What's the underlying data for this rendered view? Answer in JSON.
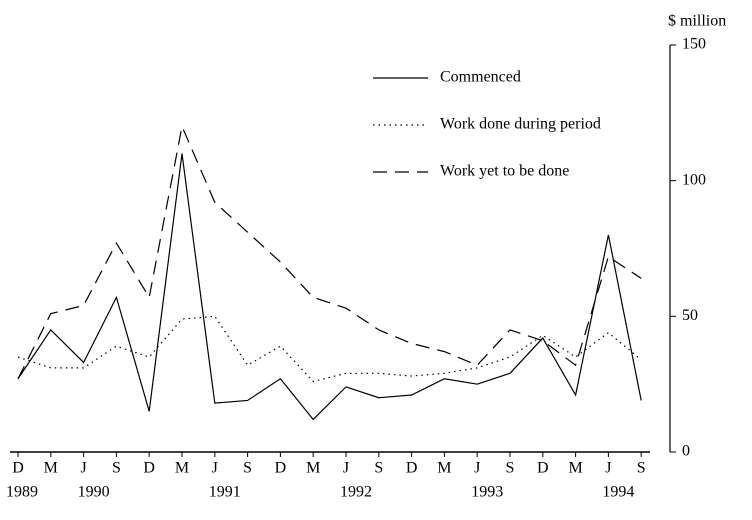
{
  "chart_data": {
    "type": "line",
    "y_axis_label": "$ million",
    "categories": [
      "D",
      "M",
      "J",
      "S",
      "D",
      "M",
      "J",
      "S",
      "D",
      "M",
      "J",
      "S",
      "D",
      "M",
      "J",
      "S",
      "D",
      "M",
      "J",
      "S"
    ],
    "years": [
      "1989",
      null,
      "1990",
      null,
      null,
      null,
      "1991",
      null,
      null,
      null,
      "1992",
      null,
      null,
      null,
      "1993",
      null,
      null,
      null,
      "1994",
      null
    ],
    "series": [
      {
        "name": "Commenced",
        "color": "#000000",
        "dash": "solid",
        "values": [
          27,
          45,
          33,
          57,
          15,
          110,
          18,
          19,
          27,
          12,
          24,
          20,
          21,
          27,
          25,
          29,
          42,
          21,
          80,
          19
        ]
      },
      {
        "name": "Work done during period",
        "color": "#000000",
        "dash": "dotted",
        "values": [
          35,
          31,
          31,
          39,
          35,
          49,
          50,
          32,
          39,
          26,
          29,
          29,
          28,
          29,
          31,
          35,
          43,
          35,
          44,
          34
        ]
      },
      {
        "name": "Work yet to be done",
        "color": "#000000",
        "dash": "dashed",
        "values": [
          27,
          51,
          54,
          77,
          57,
          120,
          92,
          81,
          70,
          57,
          53,
          45,
          40,
          37,
          32,
          45,
          41,
          32,
          72,
          64
        ]
      }
    ],
    "ylim": [
      0,
      150
    ],
    "yticks": [
      0,
      50,
      100,
      150
    ],
    "y_axis_side": "right",
    "grid": false
  }
}
